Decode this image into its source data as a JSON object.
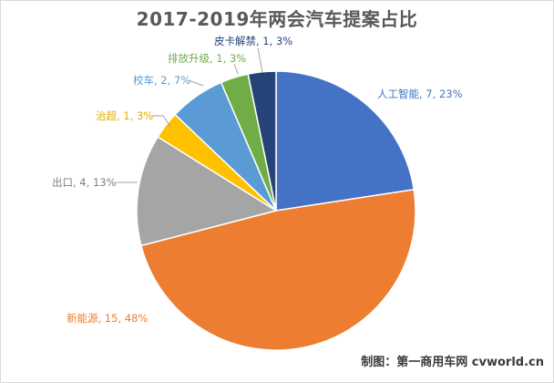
{
  "chart_data": {
    "type": "pie",
    "title": "2017-2019年两会汽车提案占比",
    "slices": [
      {
        "label": "人工智能, 7, 23%",
        "value": 7,
        "color": "#4472c4",
        "label_color": "#4472c4"
      },
      {
        "label": "新能源, 15, 48%",
        "value": 15,
        "color": "#ed7d31",
        "label_color": "#ed7d31"
      },
      {
        "label": "出口, 4, 13%",
        "value": 4,
        "color": "#a5a5a5",
        "label_color": "#7f7f7f"
      },
      {
        "label": "治超, 1, 3%",
        "value": 1,
        "color": "#ffc000",
        "label_color": "#e6ac00"
      },
      {
        "label": "校车, 2, 7%",
        "value": 2,
        "color": "#5b9bd5",
        "label_color": "#5b9bd5"
      },
      {
        "label": "排放升级, 1, 3%",
        "value": 1,
        "color": "#70ad47",
        "label_color": "#70ad47"
      },
      {
        "label": "皮卡解禁, 1, 3%",
        "value": 1,
        "color": "#264478",
        "label_color": "#264478"
      }
    ],
    "legend": "none"
  },
  "credit": "制图：第一商用车网 cvworld.cn"
}
